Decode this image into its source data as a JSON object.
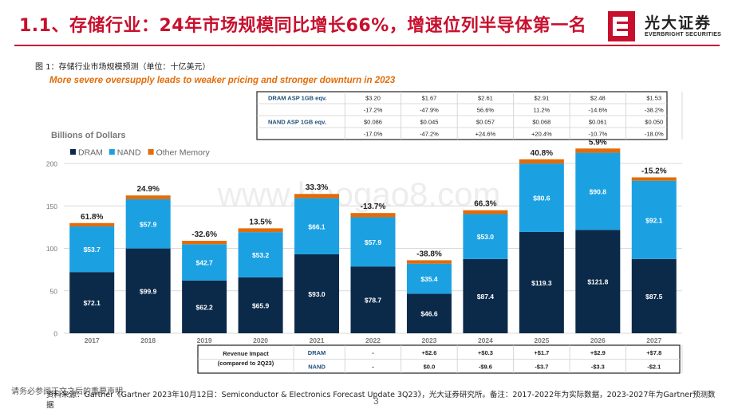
{
  "header": {
    "title": "1.1、存储行业：24年市场规模同比增长66%，增速位列半导体第一名",
    "logo_cn": "光大证券",
    "logo_en": "EVERBRIGHT SECURITIES",
    "brand_color": "#c8102e"
  },
  "figure": {
    "title": "图 1：存储行业市场规模预测（单位：十亿美元）",
    "subtitle": "More severe oversupply leads to weaker pricing and stronger downturn in 2023",
    "watermark": "www.baogao8.com"
  },
  "asp_table": {
    "rows": [
      {
        "label": "DRAM ASP 1GB eqv.",
        "values": [
          "$3.20",
          "$1.67",
          "$2.61",
          "$2.91",
          "$2.48",
          "$1.53"
        ]
      },
      {
        "label": "",
        "values": [
          "-17.2%",
          "-47.9%",
          "56.6%",
          "11.2%",
          "-14.6%",
          "-38.2%"
        ]
      },
      {
        "label": "NAND ASP 1GB eqv.",
        "values": [
          "$0.086",
          "$0.045",
          "$0.057",
          "$0.068",
          "$0.061",
          "$0.050"
        ]
      },
      {
        "label": "",
        "values": [
          "-17.0%",
          "-47.2%",
          "+24.6%",
          "+20.4%",
          "-10.7%",
          "-18.0%"
        ]
      }
    ]
  },
  "chart_data": {
    "type": "bar",
    "stacked": true,
    "ylabel": "Billions of Dollars",
    "ylim": [
      0,
      200
    ],
    "yticks": [
      "0",
      "50",
      "100",
      "150",
      "200"
    ],
    "categories": [
      "2017",
      "2018",
      "2019",
      "2020",
      "2021",
      "2022",
      "2023",
      "2024",
      "2025",
      "2026",
      "2027"
    ],
    "series": [
      {
        "name": "DRAM",
        "color": "#0b2a4a",
        "values": [
          72.1,
          99.9,
          62.2,
          65.9,
          93.0,
          78.7,
          46.6,
          87.4,
          119.3,
          121.8,
          87.5
        ],
        "labels": [
          "$72.1",
          "$99.9",
          "$62.2",
          "$65.9",
          "$93.0",
          "$78.7",
          "$46.6",
          "$87.4",
          "$119.3",
          "$121.8",
          "$87.5"
        ]
      },
      {
        "name": "NAND",
        "color": "#1ba1e2",
        "values": [
          53.7,
          57.9,
          42.7,
          53.2,
          66.1,
          57.9,
          35.4,
          53.0,
          80.6,
          90.8,
          92.1
        ],
        "labels": [
          "$53.7",
          "$57.9",
          "$42.7",
          "$53.2",
          "$66.1",
          "$57.9",
          "$35.4",
          "$53.0",
          "$80.6",
          "$90.8",
          "$92.1"
        ]
      },
      {
        "name": "Other Memory",
        "color": "#e36c09",
        "values": [
          4,
          4.5,
          4,
          4.5,
          5,
          5,
          4,
          4.5,
          5,
          5,
          4
        ]
      }
    ],
    "growth_labels": [
      "61.8%",
      "24.9%",
      "-32.6%",
      "13.5%",
      "33.3%",
      "-13.7%",
      "-38.8%",
      "66.3%",
      "40.8%",
      "5.9%",
      "-15.2%"
    ],
    "legend": "top-left"
  },
  "revenue_table": {
    "header": "Revenue Impact (compared to 2Q23)",
    "header_line1": "Revenue Impact",
    "header_line2": "(compared to 2Q23)",
    "rows": [
      {
        "label": "DRAM",
        "values": [
          "-",
          "+$2.6",
          "+$0.3",
          "+$1.7",
          "+$2.9",
          "+$7.8"
        ]
      },
      {
        "label": "NAND",
        "values": [
          "-",
          "$0.0",
          "-$9.6",
          "-$3.7",
          "-$3.3",
          "-$2.1"
        ]
      }
    ]
  },
  "footer": {
    "note": "请务必参阅正文之后的重要声明",
    "source": "资料来源：Gartner《Gartner 2023年10月12日：Semiconductor & Electronics Forecast Update 3Q23》，光大证券研究所。备注：2017-2022年为实际数据，2023-2027年为Gartner预测数据",
    "page": "3"
  }
}
